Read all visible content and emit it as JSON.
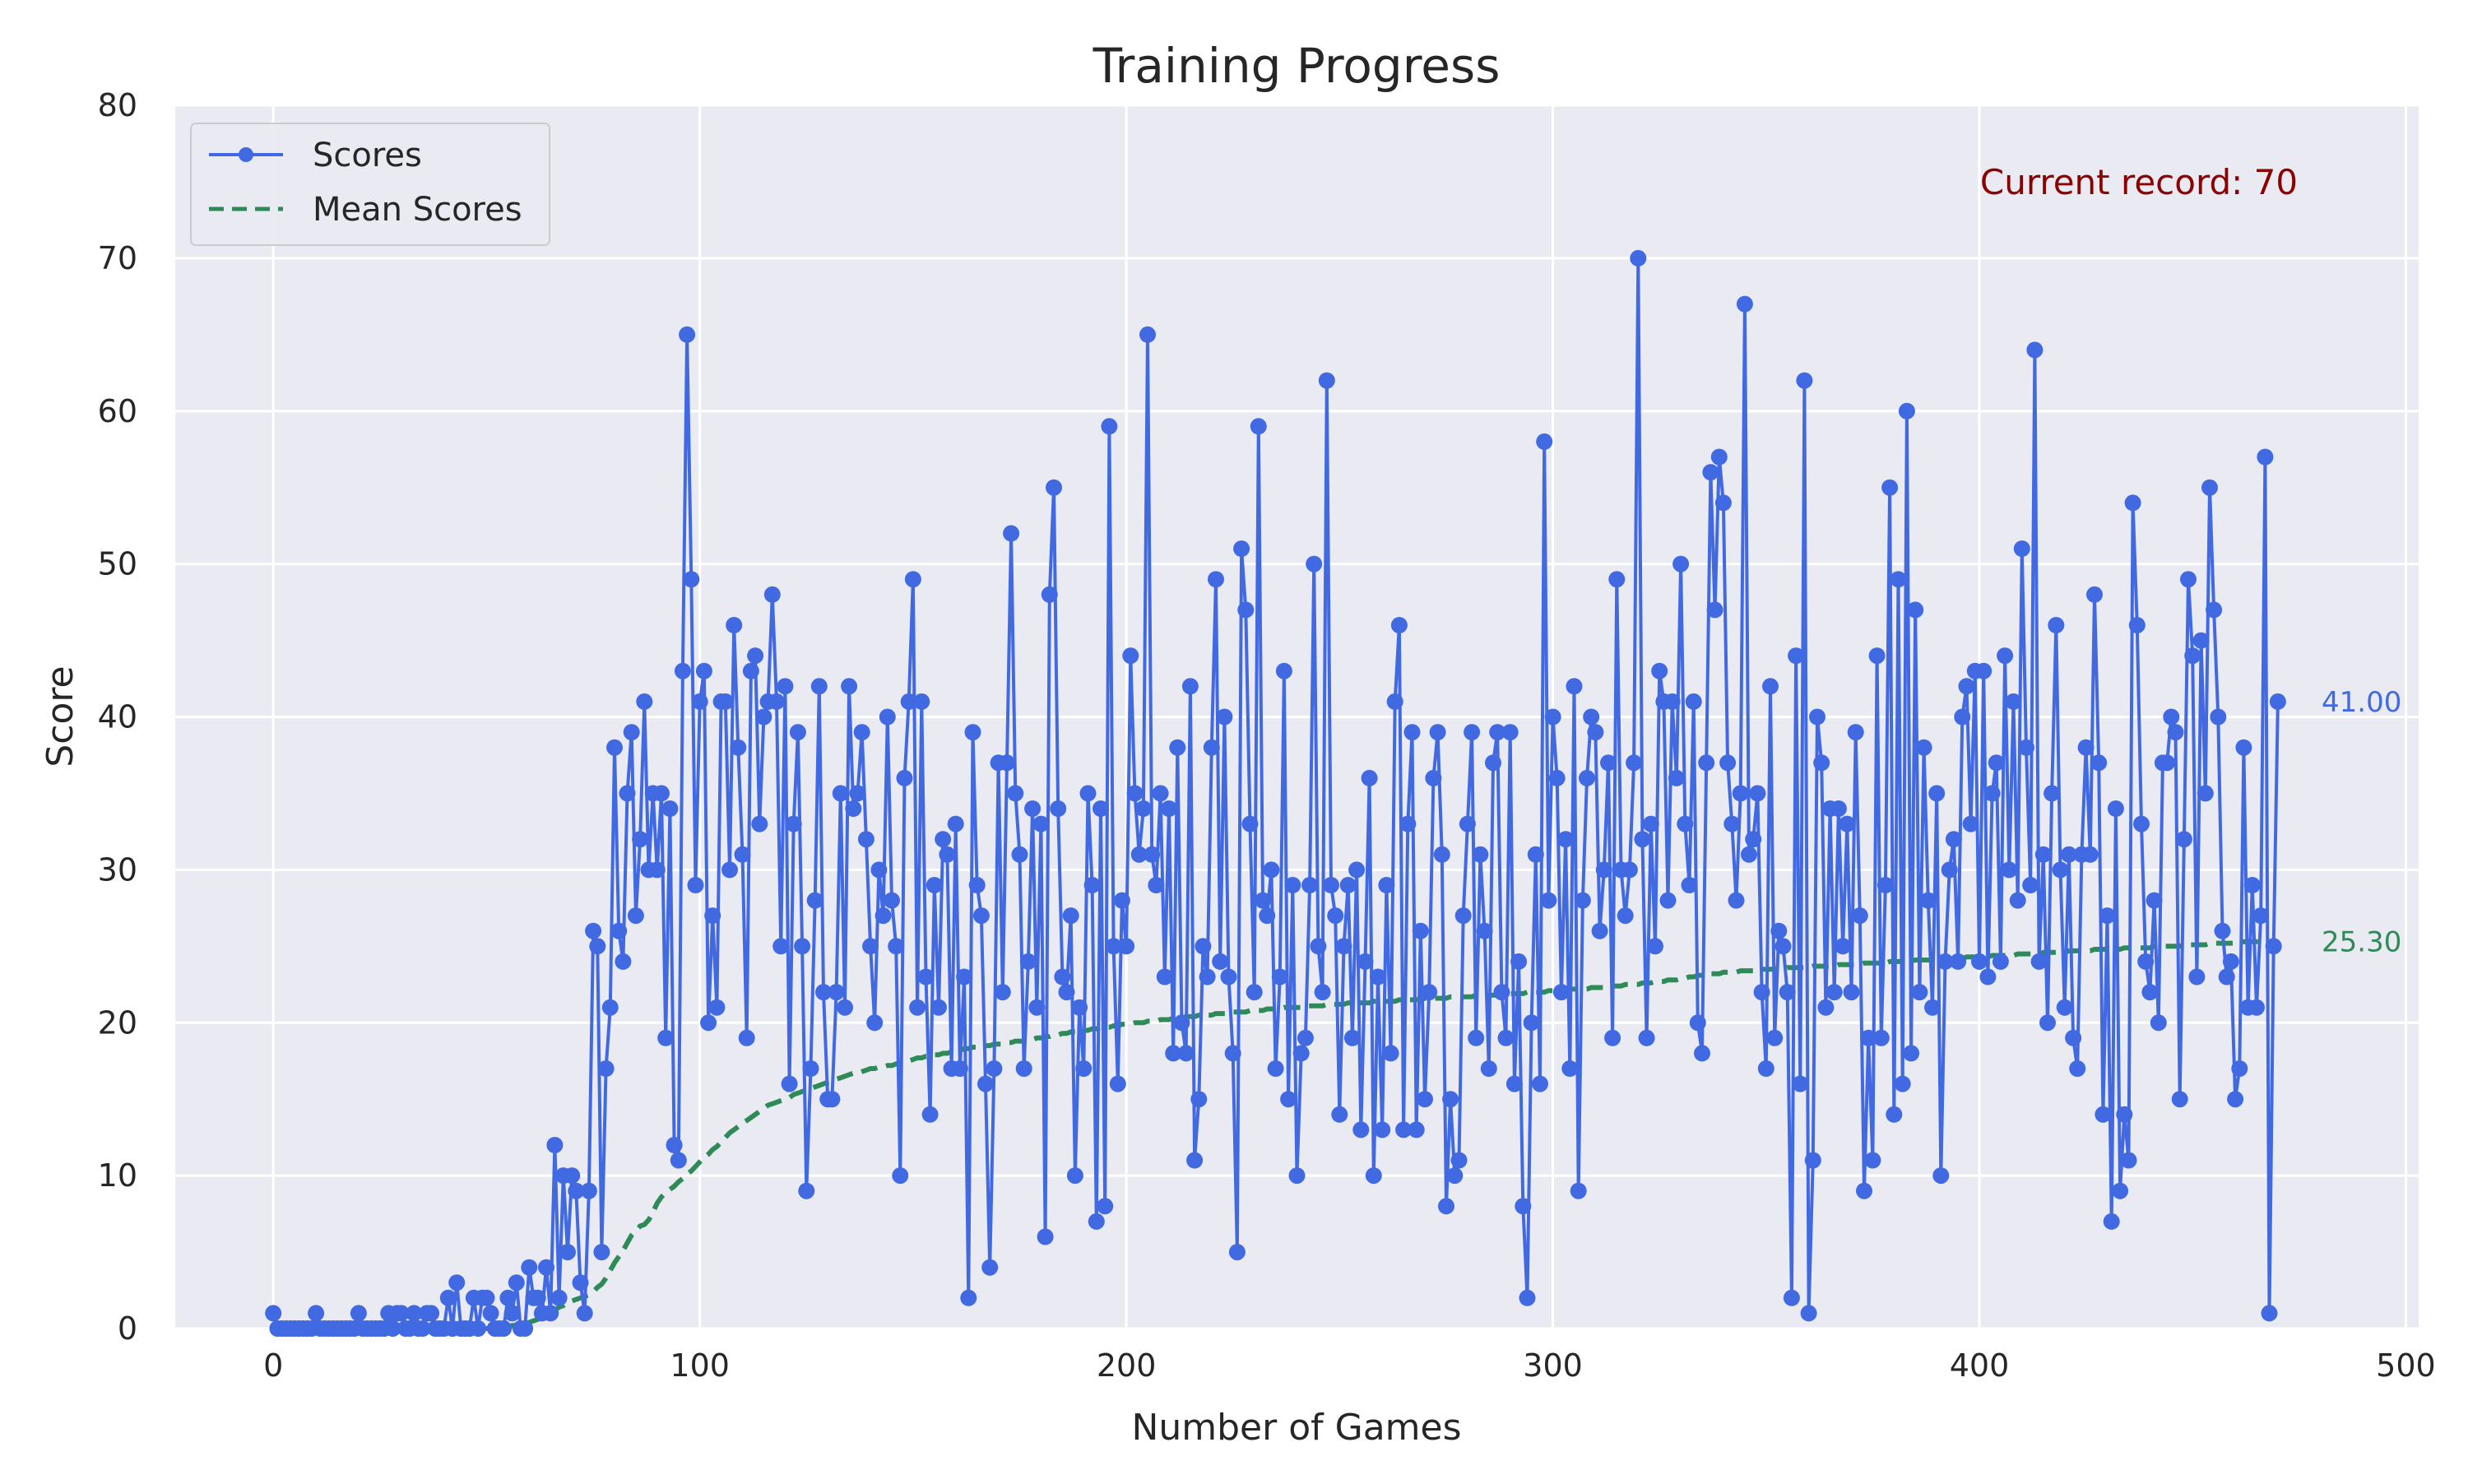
{
  "chart_data": {
    "type": "line",
    "title": "Training Progress",
    "xlabel": "Number of Games",
    "ylabel": "Score",
    "xlim": [
      -23,
      503
    ],
    "ylim": [
      0,
      80
    ],
    "x_ticks": [
      0,
      100,
      200,
      300,
      400,
      500
    ],
    "y_ticks": [
      0,
      10,
      20,
      30,
      40,
      50,
      60,
      70,
      80
    ],
    "x_tick_labels": [
      "0",
      "100",
      "200",
      "300",
      "400",
      "500"
    ],
    "y_tick_labels": [
      "0",
      "10",
      "20",
      "30",
      "40",
      "50",
      "60",
      "70",
      "80"
    ],
    "grid": true,
    "legend_position": "top-left",
    "annotation": "Current record: 70",
    "series": [
      {
        "name": "Scores",
        "style": "line-marker",
        "color": "#4169e1",
        "end_label": "41.00",
        "values": [
          1,
          0,
          0,
          0,
          0,
          0,
          0,
          0,
          0,
          0,
          1,
          0,
          0,
          0,
          0,
          0,
          0,
          0,
          0,
          0,
          1,
          0,
          0,
          0,
          0,
          0,
          0,
          1,
          0,
          1,
          1,
          0,
          0,
          1,
          0,
          0,
          1,
          1,
          0,
          0,
          0,
          2,
          0,
          3,
          0,
          0,
          0,
          2,
          0,
          2,
          2,
          1,
          0,
          0,
          0,
          2,
          1,
          3,
          0,
          0,
          4,
          2,
          2,
          1,
          4,
          1,
          12,
          2,
          10,
          5,
          10,
          9,
          3,
          1,
          9,
          26,
          25,
          5,
          17,
          21,
          38,
          26,
          24,
          35,
          39,
          27,
          32,
          41,
          30,
          35,
          30,
          35,
          19,
          34,
          12,
          11,
          43,
          65,
          49,
          29,
          41,
          43,
          20,
          27,
          21,
          41,
          41,
          30,
          46,
          38,
          31,
          19,
          43,
          44,
          33,
          40,
          41,
          48,
          41,
          25,
          42,
          16,
          33,
          39,
          25,
          9,
          17,
          28,
          42,
          22,
          15,
          15,
          22,
          35,
          21,
          42,
          34,
          35,
          39,
          32,
          25,
          20,
          30,
          27,
          40,
          28,
          25,
          10,
          36,
          41,
          49,
          21,
          41,
          23,
          14,
          29,
          21,
          32,
          31,
          17,
          33,
          17,
          23,
          2,
          39,
          29,
          27,
          16,
          4,
          17,
          37,
          22,
          37,
          52,
          35,
          31,
          17,
          24,
          34,
          21,
          33,
          6,
          48,
          55,
          34,
          23,
          22,
          27,
          10,
          21,
          17,
          35,
          29,
          7,
          34,
          8,
          59,
          25,
          16,
          28,
          25,
          44,
          35,
          31,
          34,
          65,
          31,
          29,
          35,
          23,
          34,
          18,
          38,
          20,
          18,
          42,
          11,
          15,
          25,
          23,
          38,
          49,
          24,
          40,
          23,
          18,
          5,
          51,
          47,
          33,
          22,
          59,
          28,
          27,
          30,
          17,
          23,
          43,
          15,
          29,
          10,
          18,
          19,
          29,
          50,
          25,
          22,
          62,
          29,
          27,
          14,
          25,
          29,
          19,
          30,
          13,
          24,
          36,
          10,
          23,
          13,
          29,
          18,
          41,
          46,
          13,
          33,
          39,
          13,
          26,
          15,
          22,
          36,
          39,
          31,
          8,
          15,
          10,
          11,
          27,
          33,
          39,
          19,
          31,
          26,
          17,
          37,
          39,
          22,
          19,
          39,
          16,
          24,
          8,
          2,
          20,
          31,
          16,
          58,
          28,
          40,
          36,
          22,
          32,
          17,
          42,
          9,
          28,
          36,
          40,
          39,
          26,
          30,
          37,
          19,
          49,
          30,
          27,
          30,
          37,
          70,
          32,
          19,
          33,
          25,
          43,
          41,
          28,
          41,
          36,
          50,
          33,
          29,
          41,
          20,
          18,
          37,
          56,
          47,
          57,
          54,
          37,
          33,
          28,
          35,
          67,
          31,
          32,
          35,
          22,
          17,
          42,
          19,
          26,
          25,
          22,
          2,
          44,
          16,
          62,
          1,
          11,
          40,
          37,
          21,
          34,
          22,
          34,
          25,
          33,
          22,
          39,
          27,
          9,
          19,
          11,
          44,
          19,
          29,
          55,
          14,
          49,
          16,
          60,
          18,
          47,
          22,
          38,
          28,
          21,
          35,
          10,
          24,
          30,
          32,
          24,
          40,
          42,
          33,
          43,
          24,
          43,
          23,
          35,
          37,
          24,
          44,
          30,
          41,
          28,
          51,
          38,
          29,
          64,
          24,
          31,
          20,
          35,
          46,
          30,
          21,
          31,
          19,
          17,
          31,
          38,
          31,
          48,
          37,
          14,
          27,
          7,
          34,
          9,
          14,
          11,
          54,
          46,
          33,
          24,
          22,
          28,
          20,
          37,
          37,
          40,
          39,
          15,
          32,
          49,
          44,
          23,
          45,
          35,
          55,
          47,
          40,
          26,
          23,
          24,
          15,
          17,
          38,
          21,
          29,
          21,
          27,
          57,
          1,
          25,
          41
        ]
      },
      {
        "name": "Mean Scores",
        "style": "dashed",
        "color": "#2e8b57",
        "end_label": "25.30",
        "values": [
          0,
          0,
          0,
          0,
          0,
          0,
          0,
          0,
          0,
          0,
          0,
          0,
          0,
          0,
          0,
          0,
          0,
          0,
          0,
          0,
          0,
          0,
          0,
          0,
          0,
          0,
          0,
          0,
          0,
          0,
          0,
          0,
          0,
          0,
          0,
          0,
          0,
          0,
          0,
          0,
          0,
          0,
          0,
          0,
          0,
          0,
          0,
          0,
          0,
          0,
          0,
          0,
          0,
          0,
          0,
          0,
          0.2,
          0.2,
          0.3,
          0.3,
          0.4,
          0.5,
          0.6,
          0.7,
          0.8,
          1,
          1.2,
          1.4,
          1.5,
          1.7,
          1.8,
          1.9,
          2,
          2.1,
          2.2,
          2.4,
          2.7,
          2.9,
          3.3,
          3.8,
          4.3,
          4.7,
          5.1,
          5.6,
          6.1,
          6.4,
          6.7,
          6.8,
          7.1,
          7.6,
          8.2,
          8.6,
          8.9,
          9.1,
          9.3,
          9.6,
          9.8,
          10.1,
          10.3,
          10.6,
          10.9,
          11.2,
          11.4,
          11.7,
          11.9,
          12.2,
          12.5,
          12.8,
          13,
          13.2,
          13.4,
          13.6,
          13.8,
          14,
          14.2,
          14.4,
          14.6,
          14.7,
          14.8,
          14.9,
          15,
          15.1,
          15.3,
          15.4,
          15.5,
          15.6,
          15.7,
          15.8,
          15.9,
          16,
          16.1,
          16.2,
          16.3,
          16.4,
          16.5,
          16.6,
          16.7,
          16.7,
          16.8,
          16.9,
          17,
          17,
          17.1,
          17.1,
          17.2,
          17.2,
          17.3,
          17.4,
          17.5,
          17.5,
          17.6,
          17.7,
          17.7,
          17.8,
          17.8,
          17.9,
          17.9,
          18,
          18,
          18.1,
          18.2,
          18.2,
          18.3,
          18.3,
          18.4,
          18.4,
          18.4,
          18.5,
          18.5,
          18.6,
          18.6,
          18.6,
          18.7,
          18.7,
          18.8,
          18.8,
          18.8,
          18.9,
          18.9,
          19,
          19,
          19.1,
          19.1,
          19.2,
          19.2,
          19.3,
          19.3,
          19.4,
          19.4,
          19.4,
          19.5,
          19.5,
          19.6,
          19.6,
          19.7,
          19.7,
          19.7,
          19.8,
          19.8,
          19.9,
          19.9,
          19.9,
          20,
          20,
          20,
          20.1,
          20.1,
          20.1,
          20.2,
          20.2,
          20.2,
          20.3,
          20.3,
          20.3,
          20.4,
          20.4,
          20.4,
          20.5,
          20.5,
          20.5,
          20.5,
          20.6,
          20.6,
          20.6,
          20.6,
          20.7,
          20.7,
          20.7,
          20.7,
          20.8,
          20.8,
          20.8,
          20.8,
          20.9,
          20.9,
          20.9,
          20.9,
          21,
          21,
          21,
          21,
          21,
          21.1,
          21.1,
          21.1,
          21.1,
          21.1,
          21.2,
          21.2,
          21.2,
          21.2,
          21.2,
          21.3,
          21.3,
          21.3,
          21.3,
          21.3,
          21.3,
          21.4,
          21.4,
          21.4,
          21.4,
          21.4,
          21.4,
          21.5,
          21.5,
          21.5,
          21.5,
          21.5,
          21.5,
          21.6,
          21.6,
          21.6,
          21.6,
          21.6,
          21.6,
          21.7,
          21.7,
          21.7,
          21.7,
          21.7,
          21.7,
          21.8,
          21.8,
          21.8,
          21.8,
          21.8,
          21.8,
          21.9,
          21.9,
          21.9,
          21.9,
          21.9,
          21.9,
          22,
          22,
          22,
          22,
          22,
          22.1,
          22.1,
          22.1,
          22.1,
          22.1,
          22.2,
          22.2,
          22.2,
          22.2,
          22.2,
          22.3,
          22.3,
          22.3,
          22.3,
          22.4,
          22.4,
          22.4,
          22.4,
          22.5,
          22.5,
          22.5,
          22.5,
          22.6,
          22.6,
          22.6,
          22.7,
          22.7,
          22.7,
          22.8,
          22.8,
          22.8,
          22.9,
          22.9,
          23,
          23,
          23.1,
          23.1,
          23.1,
          23.2,
          23.2,
          23.2,
          23.3,
          23.3,
          23.3,
          23.3,
          23.4,
          23.4,
          23.4,
          23.4,
          23.4,
          23.5,
          23.5,
          23.5,
          23.5,
          23.5,
          23.5,
          23.6,
          23.6,
          23.6,
          23.6,
          23.6,
          23.6,
          23.7,
          23.7,
          23.7,
          23.7,
          23.7,
          23.7,
          23.8,
          23.8,
          23.8,
          23.8,
          23.8,
          23.8,
          23.9,
          23.9,
          23.9,
          23.9,
          23.9,
          23.9,
          24,
          24,
          24,
          24,
          24,
          24,
          24.1,
          24.1,
          24.1,
          24.1,
          24.1,
          24.1,
          24.2,
          24.2,
          24.2,
          24.2,
          24.2,
          24.2,
          24.3,
          24.3,
          24.3,
          24.3,
          24.3,
          24.3,
          24.4,
          24.4,
          24.4,
          24.4,
          24.4,
          24.4,
          24.5,
          24.5,
          24.5,
          24.5,
          24.5,
          24.5,
          24.6,
          24.6,
          24.6,
          24.6,
          24.6,
          24.6,
          24.7,
          24.7,
          24.7,
          24.7,
          24.7,
          24.7,
          24.8,
          24.8,
          24.8,
          24.8,
          24.8,
          24.8,
          24.8,
          24.9,
          24.9,
          24.9,
          24.9,
          24.9,
          24.9,
          24.9,
          25,
          25,
          25,
          25,
          25,
          25,
          25,
          25.1,
          25.1,
          25.1,
          25.1,
          25.1,
          25.1,
          25.2,
          25.2,
          25.2,
          25.2,
          25.2,
          25.2,
          25.2,
          25.2,
          25.3,
          25.3,
          25.3,
          25.3,
          25.3,
          25.3
        ]
      }
    ]
  },
  "colors": {
    "plot_background": "#eaeaf2",
    "grid": "#ffffff",
    "annotation": "#8b0000"
  }
}
